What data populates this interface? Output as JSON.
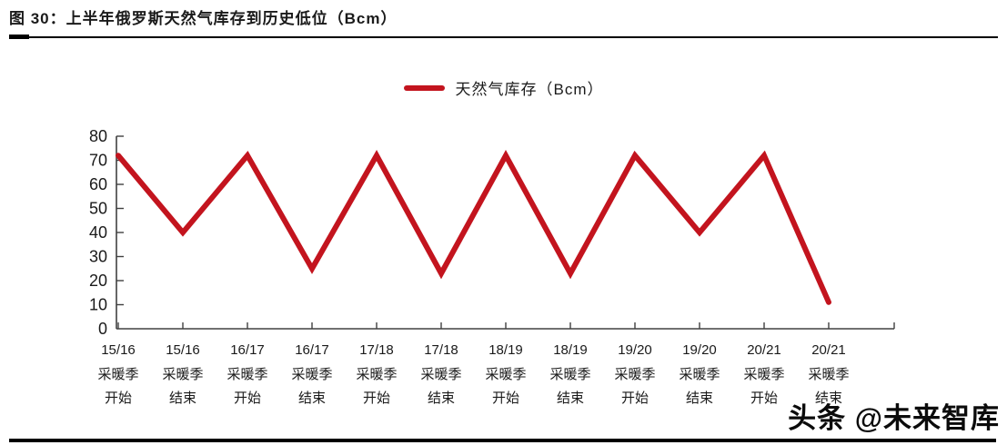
{
  "figure": {
    "title": "图 30：上半年俄罗斯天然气库存到历史低位（Bcm）"
  },
  "watermark": "头条 @未来智库",
  "colors": {
    "line": "#C3141E",
    "axis": "#404040",
    "text": "#1A1A1A"
  },
  "chart_data": {
    "type": "line",
    "title": "上半年俄罗斯天然气库存到历史低位（Bcm）",
    "legend": "天然气库存（Bcm）",
    "legend_position": "top-center",
    "grid": false,
    "categories": [
      [
        "15/16",
        "采暖季",
        "开始"
      ],
      [
        "15/16",
        "采暖季",
        "结束"
      ],
      [
        "16/17",
        "采暖季",
        "开始"
      ],
      [
        "16/17",
        "采暖季",
        "结束"
      ],
      [
        "17/18",
        "采暖季",
        "开始"
      ],
      [
        "17/18",
        "采暖季",
        "结束"
      ],
      [
        "18/19",
        "采暖季",
        "开始"
      ],
      [
        "18/19",
        "采暖季",
        "结束"
      ],
      [
        "19/20",
        "采暖季",
        "开始"
      ],
      [
        "19/20",
        "采暖季",
        "结束"
      ],
      [
        "20/21",
        "采暖季",
        "开始"
      ],
      [
        "20/21",
        "采暖季",
        "结束"
      ]
    ],
    "values": [
      72,
      40,
      72,
      25,
      72,
      23,
      72,
      23,
      72,
      40,
      72,
      11
    ],
    "ylim": [
      0,
      80
    ],
    "ytick_step": 10
  }
}
